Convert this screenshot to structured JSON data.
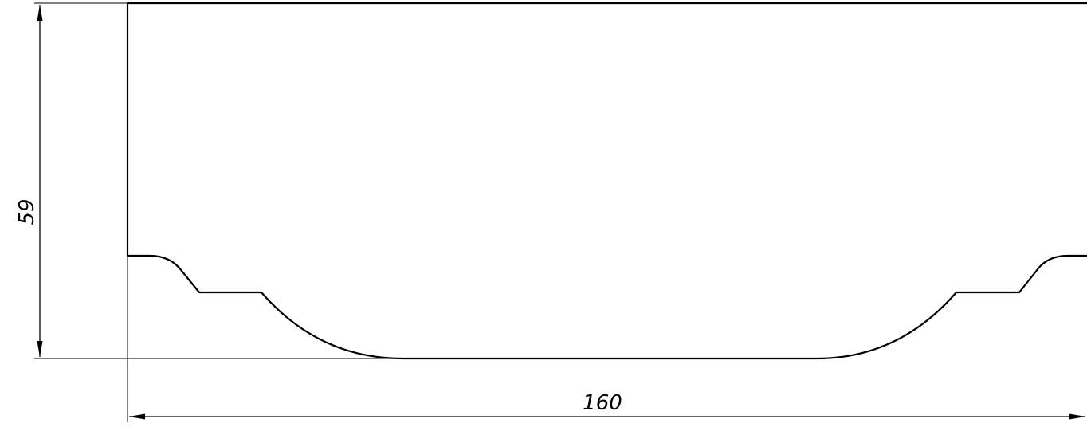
{
  "dimensions": {
    "height": {
      "value": "59"
    },
    "width": {
      "value": "160"
    }
  },
  "colors": {
    "line": "#000000",
    "background": "#ffffff"
  }
}
